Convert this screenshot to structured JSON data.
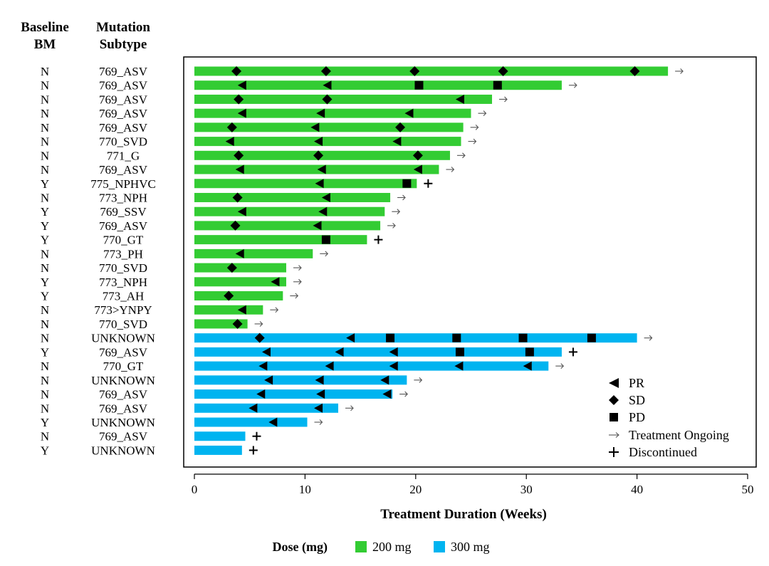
{
  "headers": {
    "bm_line1": "Baseline",
    "bm_line2": "BM",
    "mut_line1": "Mutation",
    "mut_line2": "Subtype"
  },
  "chart_data": {
    "type": "swimmer",
    "xlabel": "Treatment Duration (Weeks)",
    "xlim": [
      0,
      50
    ],
    "xticks": [
      0,
      10,
      20,
      30,
      40,
      50
    ],
    "colors": {
      "200 mg": "#33cc33",
      "300 mg": "#00b4f0"
    },
    "dose_legend": {
      "title": "Dose (mg)",
      "entries": [
        "200 mg",
        "300 mg"
      ]
    },
    "symbol_legend": [
      "PR",
      "SD",
      "PD",
      "Treatment Ongoing",
      "Discontinued"
    ],
    "rows": [
      {
        "bm": "N",
        "mutation": "769_ASV",
        "dose": "200 mg",
        "duration": 42.8,
        "end": "Treatment Ongoing",
        "events": [
          [
            "SD",
            3.8
          ],
          [
            "SD",
            11.9
          ],
          [
            "SD",
            19.9
          ],
          [
            "SD",
            27.9
          ],
          [
            "SD",
            39.8
          ]
        ]
      },
      {
        "bm": "N",
        "mutation": "769_ASV",
        "dose": "200 mg",
        "duration": 33.2,
        "end": "Treatment Ongoing",
        "events": [
          [
            "PR",
            4.3
          ],
          [
            "PR",
            12.0
          ],
          [
            "PD",
            20.3
          ],
          [
            "PD",
            27.4
          ]
        ]
      },
      {
        "bm": "N",
        "mutation": "769_ASV",
        "dose": "200 mg",
        "duration": 26.9,
        "end": "Treatment Ongoing",
        "events": [
          [
            "SD",
            4.0
          ],
          [
            "SD",
            12.0
          ],
          [
            "PR",
            24.0
          ]
        ]
      },
      {
        "bm": "N",
        "mutation": "769_ASV",
        "dose": "200 mg",
        "duration": 25.0,
        "end": "Treatment Ongoing",
        "events": [
          [
            "PR",
            4.3
          ],
          [
            "PR",
            11.4
          ],
          [
            "PR",
            19.4
          ]
        ]
      },
      {
        "bm": "N",
        "mutation": "769_ASV",
        "dose": "200 mg",
        "duration": 24.3,
        "end": "Treatment Ongoing",
        "events": [
          [
            "SD",
            3.4
          ],
          [
            "PR",
            10.9
          ],
          [
            "SD",
            18.6
          ]
        ]
      },
      {
        "bm": "N",
        "mutation": "770_SVD",
        "dose": "200 mg",
        "duration": 24.1,
        "end": "Treatment Ongoing",
        "events": [
          [
            "PR",
            3.2
          ],
          [
            "PR",
            11.2
          ],
          [
            "PR",
            18.3
          ]
        ]
      },
      {
        "bm": "N",
        "mutation": "771_G",
        "dose": "200 mg",
        "duration": 23.1,
        "end": "Treatment Ongoing",
        "events": [
          [
            "SD",
            4.0
          ],
          [
            "SD",
            11.2
          ],
          [
            "SD",
            20.2
          ]
        ]
      },
      {
        "bm": "N",
        "mutation": "769_ASV",
        "dose": "200 mg",
        "duration": 22.1,
        "end": "Treatment Ongoing",
        "events": [
          [
            "PR",
            4.1
          ],
          [
            "PR",
            11.5
          ],
          [
            "PR",
            20.2
          ]
        ]
      },
      {
        "bm": "Y",
        "mutation": "775_NPHVC",
        "dose": "200 mg",
        "duration": 20.1,
        "end": "Discontinued",
        "events": [
          [
            "PR",
            11.3
          ],
          [
            "PD",
            19.2
          ]
        ]
      },
      {
        "bm": "N",
        "mutation": "773_NPH",
        "dose": "200 mg",
        "duration": 17.7,
        "end": "Treatment Ongoing",
        "events": [
          [
            "SD",
            3.9
          ],
          [
            "PR",
            11.9
          ]
        ]
      },
      {
        "bm": "Y",
        "mutation": "769_SSV",
        "dose": "200 mg",
        "duration": 17.2,
        "end": "Treatment Ongoing",
        "events": [
          [
            "PR",
            4.3
          ],
          [
            "PR",
            11.6
          ]
        ]
      },
      {
        "bm": "Y",
        "mutation": "769_ASV",
        "dose": "200 mg",
        "duration": 16.8,
        "end": "Treatment Ongoing",
        "events": [
          [
            "SD",
            3.7
          ],
          [
            "PR",
            11.1
          ]
        ]
      },
      {
        "bm": "Y",
        "mutation": "770_GT",
        "dose": "200 mg",
        "duration": 15.6,
        "end": "Discontinued",
        "events": [
          [
            "PD",
            11.9
          ]
        ]
      },
      {
        "bm": "N",
        "mutation": "773_PH",
        "dose": "200 mg",
        "duration": 10.7,
        "end": "Treatment Ongoing",
        "events": [
          [
            "PR",
            4.1
          ]
        ]
      },
      {
        "bm": "N",
        "mutation": "770_SVD",
        "dose": "200 mg",
        "duration": 8.3,
        "end": "Treatment Ongoing",
        "events": [
          [
            "SD",
            3.4
          ]
        ]
      },
      {
        "bm": "Y",
        "mutation": "773_NPH",
        "dose": "200 mg",
        "duration": 8.3,
        "end": "Treatment Ongoing",
        "events": [
          [
            "PR",
            7.3
          ]
        ]
      },
      {
        "bm": "Y",
        "mutation": "773_AH",
        "dose": "200 mg",
        "duration": 8.0,
        "end": "Treatment Ongoing",
        "events": [
          [
            "SD",
            3.1
          ]
        ]
      },
      {
        "bm": "N",
        "mutation": "773>YNPY",
        "dose": "200 mg",
        "duration": 6.2,
        "end": "Treatment Ongoing",
        "events": [
          [
            "PR",
            4.3
          ]
        ]
      },
      {
        "bm": "N",
        "mutation": "770_SVD",
        "dose": "200 mg",
        "duration": 4.8,
        "end": "Treatment Ongoing",
        "events": [
          [
            "SD",
            3.9
          ]
        ]
      },
      {
        "bm": "N",
        "mutation": "UNKNOWN",
        "dose": "300 mg",
        "duration": 40.0,
        "end": "Treatment Ongoing",
        "events": [
          [
            "SD",
            5.9
          ],
          [
            "PR",
            14.1
          ],
          [
            "PD",
            17.7
          ],
          [
            "PD",
            23.7
          ],
          [
            "PD",
            29.7
          ],
          [
            "PD",
            35.9
          ]
        ]
      },
      {
        "bm": "Y",
        "mutation": "769_ASV",
        "dose": "300 mg",
        "duration": 33.2,
        "end": "Discontinued",
        "events": [
          [
            "PR",
            6.5
          ],
          [
            "PR",
            13.1
          ],
          [
            "PR",
            18.0
          ],
          [
            "PD",
            24.0
          ],
          [
            "PD",
            30.3
          ]
        ]
      },
      {
        "bm": "N",
        "mutation": "770_GT",
        "dose": "300 mg",
        "duration": 32.0,
        "end": "Treatment Ongoing",
        "events": [
          [
            "PR",
            6.2
          ],
          [
            "PR",
            12.2
          ],
          [
            "PR",
            18.0
          ],
          [
            "PR",
            23.9
          ],
          [
            "PR",
            30.1
          ]
        ]
      },
      {
        "bm": "N",
        "mutation": "UNKNOWN",
        "dose": "300 mg",
        "duration": 19.2,
        "end": "Treatment Ongoing",
        "events": [
          [
            "PR",
            6.7
          ],
          [
            "PR",
            11.3
          ],
          [
            "PR",
            17.2
          ]
        ]
      },
      {
        "bm": "N",
        "mutation": "769_ASV",
        "dose": "300 mg",
        "duration": 17.9,
        "end": "Treatment Ongoing",
        "events": [
          [
            "PR",
            6.0
          ],
          [
            "PR",
            11.4
          ],
          [
            "PR",
            17.4
          ]
        ]
      },
      {
        "bm": "N",
        "mutation": "769_ASV",
        "dose": "300 mg",
        "duration": 13.0,
        "end": "Treatment Ongoing",
        "events": [
          [
            "PR",
            5.3
          ],
          [
            "PR",
            11.2
          ]
        ]
      },
      {
        "bm": "Y",
        "mutation": "UNKNOWN",
        "dose": "300 mg",
        "duration": 10.2,
        "end": "Treatment Ongoing",
        "events": [
          [
            "PR",
            7.1
          ]
        ]
      },
      {
        "bm": "N",
        "mutation": "769_ASV",
        "dose": "300 mg",
        "duration": 4.6,
        "end": "Discontinued",
        "events": []
      },
      {
        "bm": "Y",
        "mutation": "UNKNOWN",
        "dose": "300 mg",
        "duration": 4.3,
        "end": "Discontinued",
        "events": []
      }
    ]
  }
}
